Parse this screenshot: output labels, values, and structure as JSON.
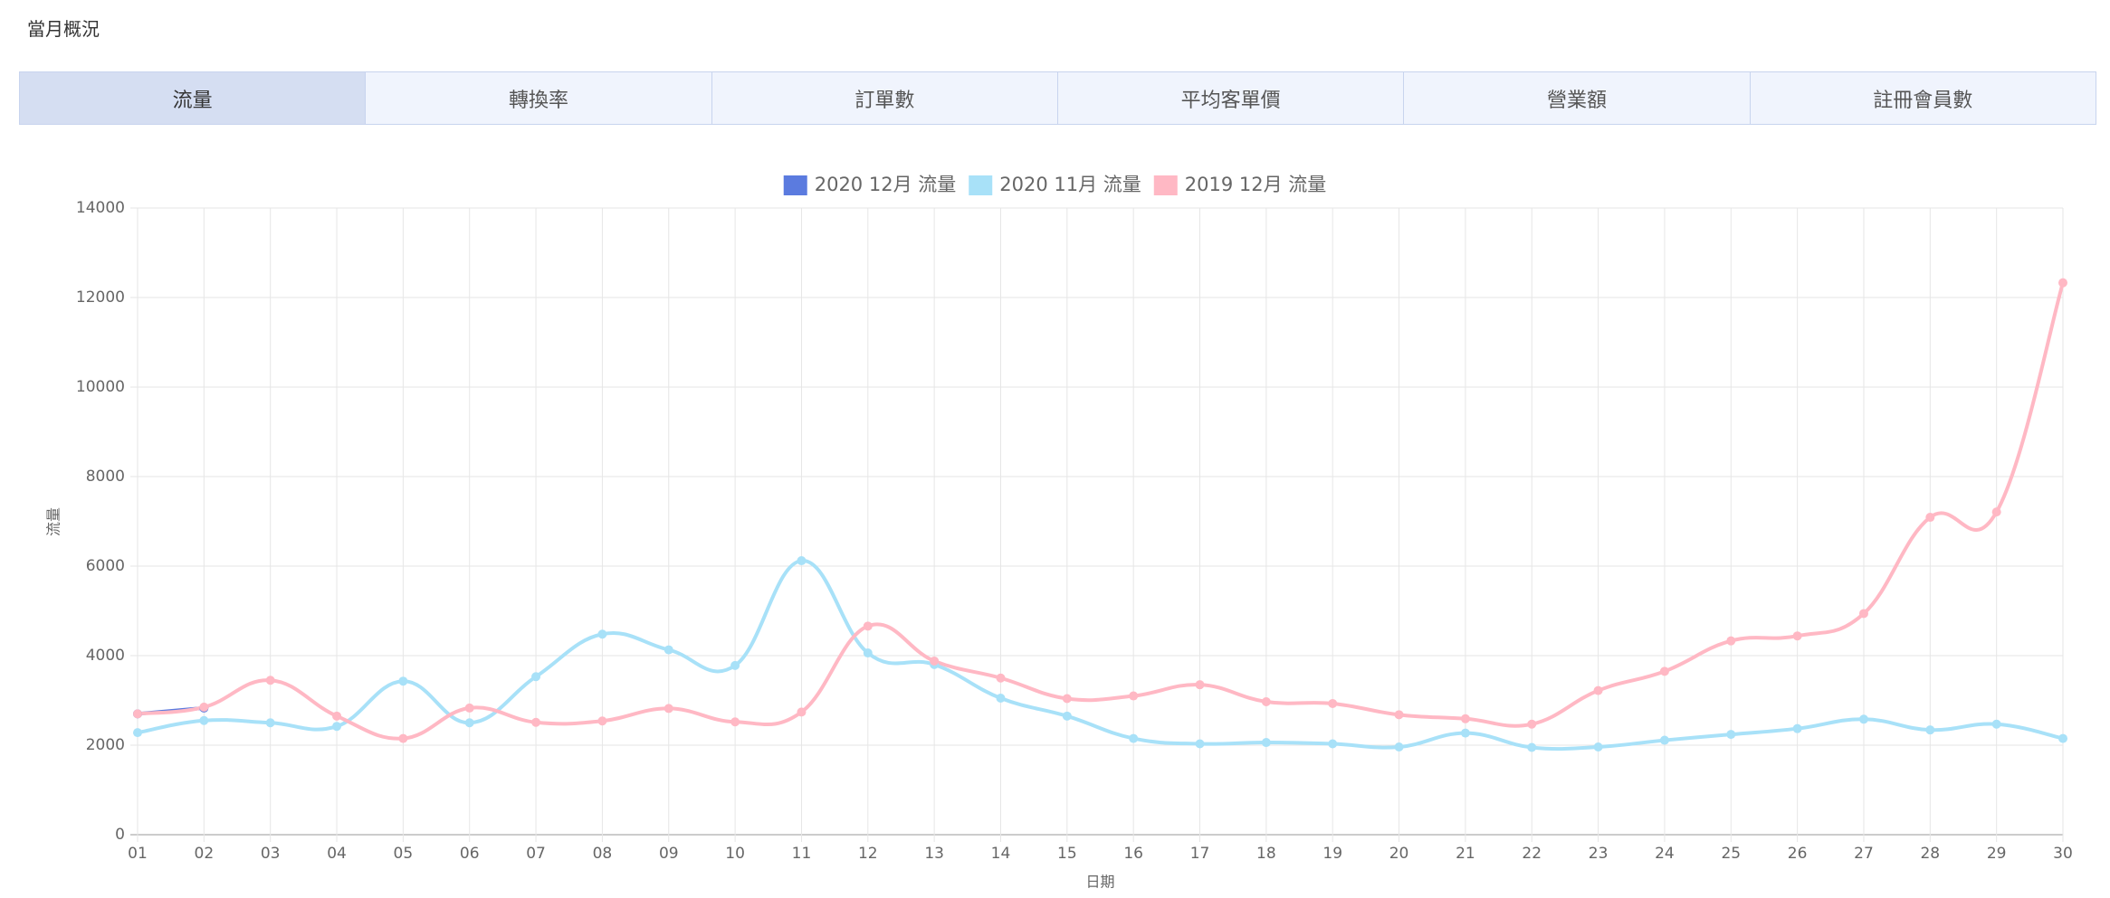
{
  "header": {
    "title": "當月概況"
  },
  "tabs": [
    "流量",
    "轉換率",
    "訂單數",
    "平均客單價",
    "營業額",
    "註冊會員數"
  ],
  "active_tab": 0,
  "chart_data": {
    "type": "line",
    "x_label": "日期",
    "y_label": "流量",
    "legend": "top",
    "grid": true,
    "categories": [
      "01",
      "02",
      "03",
      "04",
      "05",
      "06",
      "07",
      "08",
      "09",
      "10",
      "11",
      "12",
      "13",
      "14",
      "15",
      "16",
      "17",
      "18",
      "19",
      "20",
      "21",
      "22",
      "23",
      "24",
      "25",
      "26",
      "27",
      "28",
      "29",
      "30"
    ],
    "series": [
      {
        "name": "2020 12月 流量",
        "color": "#5b7bdf",
        "values": [
          2700,
          2830,
          null,
          null,
          null,
          null,
          null,
          null,
          null,
          null,
          null,
          null,
          null,
          null,
          null,
          null,
          null,
          null,
          null,
          null,
          null,
          null,
          null,
          null,
          null,
          null,
          null,
          null,
          null,
          null
        ]
      },
      {
        "name": "2020 11月 流量",
        "color": "#a8e1f8",
        "values": [
          2280,
          2550,
          2500,
          2420,
          3430,
          2500,
          3530,
          4480,
          4130,
          3780,
          6120,
          4060,
          3800,
          3050,
          2650,
          2150,
          2030,
          2060,
          2030,
          1960,
          2270,
          1950,
          1960,
          2110,
          2240,
          2370,
          2580,
          2340,
          2470,
          2150
        ]
      },
      {
        "name": "2019 12月 流量",
        "color": "#ffb8c4",
        "values": [
          2700,
          2850,
          3450,
          2650,
          2150,
          2830,
          2510,
          2540,
          2820,
          2520,
          2740,
          4660,
          3880,
          3500,
          3040,
          3100,
          3350,
          2970,
          2930,
          2680,
          2590,
          2470,
          3220,
          3650,
          4330,
          4440,
          4940,
          7090,
          7210,
          12330
        ]
      }
    ],
    "ylim": [
      0,
      14000
    ],
    "yticks": [
      0,
      2000,
      4000,
      6000,
      8000,
      10000,
      12000,
      14000
    ]
  }
}
